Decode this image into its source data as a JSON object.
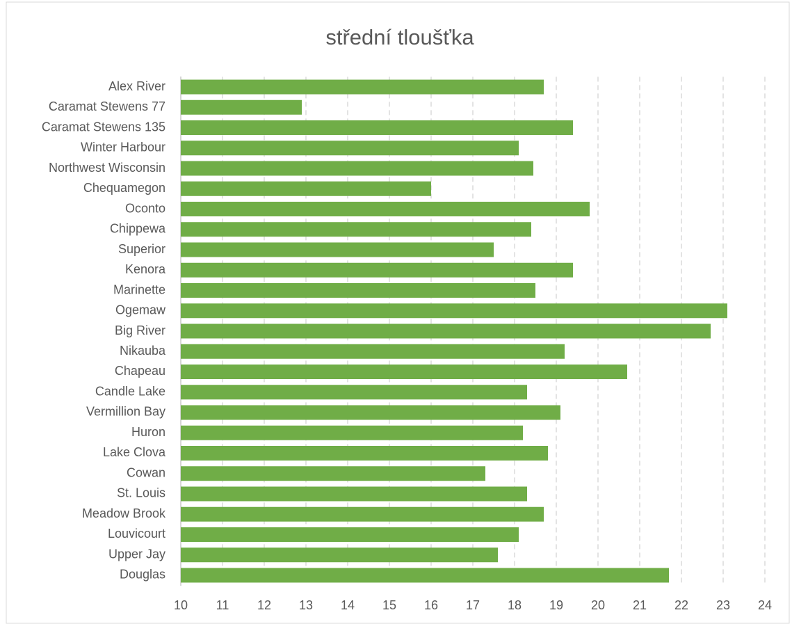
{
  "chart_data": {
    "type": "bar",
    "orientation": "horizontal",
    "title": "střední tloušťka",
    "categories": [
      "Alex River",
      "Caramat Stewens 77",
      "Caramat Stewens 135",
      "Winter Harbour",
      "Northwest Wisconsin",
      "Chequamegon",
      "Oconto",
      "Chippewa",
      "Superior",
      "Kenora",
      "Marinette",
      "Ogemaw",
      "Big River",
      "Nikauba",
      "Chapeau",
      "Candle Lake",
      "Vermillion Bay",
      "Huron",
      "Lake Clova",
      "Cowan",
      "St. Louis",
      "Meadow Brook",
      "Louvicourt",
      "Upper Jay",
      "Douglas"
    ],
    "values": [
      18.7,
      12.9,
      19.4,
      18.1,
      18.45,
      16.0,
      19.8,
      18.4,
      17.5,
      19.4,
      18.5,
      23.1,
      22.7,
      19.2,
      20.7,
      18.3,
      19.1,
      18.2,
      18.8,
      17.3,
      18.3,
      18.7,
      18.1,
      17.6,
      21.7
    ],
    "color": "#70ad47",
    "xlim": [
      10,
      24
    ],
    "xticks": [
      10,
      11,
      12,
      13,
      14,
      15,
      16,
      17,
      18,
      19,
      20,
      21,
      22,
      23,
      24
    ],
    "grid": true
  }
}
